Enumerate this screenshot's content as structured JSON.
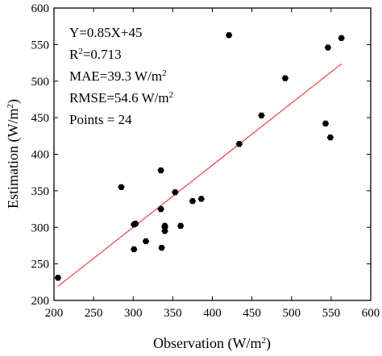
{
  "chart_data": {
    "type": "scatter",
    "title": "",
    "xlabel": "Observation (W/m",
    "xlabel_sup": "2",
    "xlabel_end": ")",
    "ylabel": "Estimation (W/m",
    "ylabel_sup": "2",
    "ylabel_end": ")",
    "xlim": [
      200,
      600
    ],
    "ylim": [
      200,
      600
    ],
    "xticks": [
      200,
      250,
      300,
      350,
      400,
      450,
      500,
      550,
      600
    ],
    "yticks": [
      200,
      250,
      300,
      350,
      400,
      450,
      500,
      550,
      600
    ],
    "grid": false,
    "point_color": "#000000",
    "fit_line_color": "#e8211d",
    "points": [
      {
        "x": 205,
        "y": 231
      },
      {
        "x": 285,
        "y": 355
      },
      {
        "x": 301,
        "y": 270
      },
      {
        "x": 301,
        "y": 304
      },
      {
        "x": 303,
        "y": 305
      },
      {
        "x": 316,
        "y": 281
      },
      {
        "x": 335,
        "y": 378
      },
      {
        "x": 335,
        "y": 325
      },
      {
        "x": 336,
        "y": 272
      },
      {
        "x": 340,
        "y": 302
      },
      {
        "x": 340,
        "y": 295
      },
      {
        "x": 353,
        "y": 348
      },
      {
        "x": 360,
        "y": 302
      },
      {
        "x": 375,
        "y": 336
      },
      {
        "x": 386,
        "y": 339
      },
      {
        "x": 421,
        "y": 563
      },
      {
        "x": 434,
        "y": 414
      },
      {
        "x": 462,
        "y": 453
      },
      {
        "x": 492,
        "y": 504
      },
      {
        "x": 543,
        "y": 442
      },
      {
        "x": 546,
        "y": 546
      },
      {
        "x": 549,
        "y": 423
      },
      {
        "x": 563,
        "y": 559
      },
      {
        "x": 340,
        "y": 300
      }
    ],
    "fit_line": {
      "x": [
        205,
        563
      ],
      "y": [
        219.25,
        523.55
      ]
    },
    "annotations": {
      "equation": "Y=0.85X+45",
      "r2_prefix": "R",
      "r2_sup": "2",
      "r2_value": "=0.713",
      "mae_text": "MAE=39.3 W/m",
      "mae_sup": "2",
      "rmse_text": "RMSE=54.6 W/m",
      "rmse_sup": "2",
      "points_text": "Points = 24"
    }
  }
}
